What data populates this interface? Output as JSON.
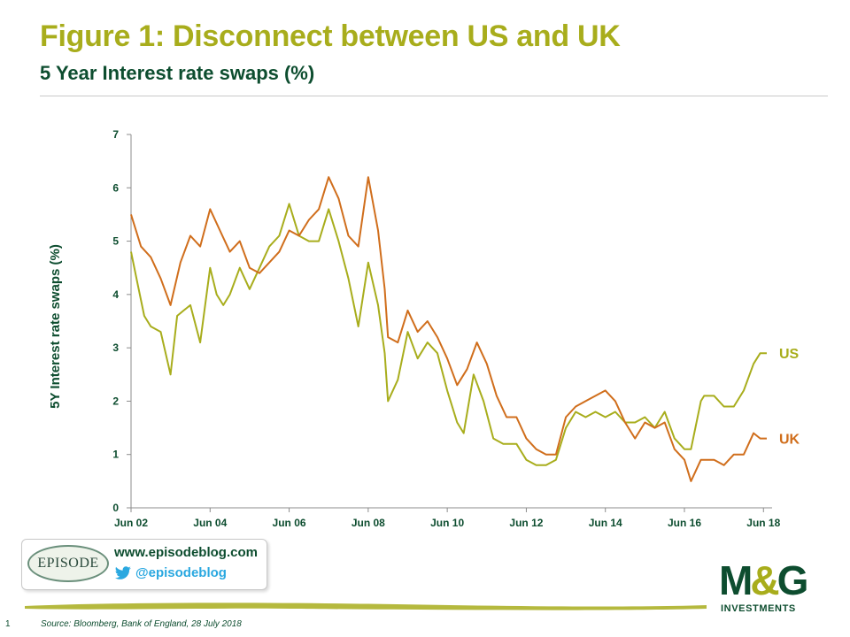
{
  "header": {
    "title": "Figure 1: Disconnect between US and UK",
    "subtitle": "5 Year Interest rate swaps (%)"
  },
  "colors": {
    "us": "#a8ad1c",
    "uk": "#d06e1c",
    "text_dark": "#0d4d2f",
    "twitter": "#2aa8e0"
  },
  "chart_data": {
    "type": "line",
    "ylabel": "5Y Interest rate swaps (%)",
    "xlabel": "",
    "ylim": [
      0,
      7
    ],
    "yticks": [
      0,
      1,
      2,
      3,
      4,
      5,
      6,
      7
    ],
    "xlim": [
      "2002-06",
      "2018-07"
    ],
    "xticks": [
      "Jun 02",
      "Jun 04",
      "Jun 06",
      "Jun 08",
      "Jun 10",
      "Jun 12",
      "Jun 14",
      "Jun 16",
      "Jun 18"
    ],
    "grid": false,
    "series": [
      {
        "name": "US",
        "color": "#a8ad1c",
        "points": [
          [
            "2002-06",
            4.8
          ],
          [
            "2002-08",
            4.2
          ],
          [
            "2002-10",
            3.6
          ],
          [
            "2002-12",
            3.4
          ],
          [
            "2003-03",
            3.3
          ],
          [
            "2003-06",
            2.5
          ],
          [
            "2003-08",
            3.6
          ],
          [
            "2003-10",
            3.7
          ],
          [
            "2003-12",
            3.8
          ],
          [
            "2004-03",
            3.1
          ],
          [
            "2004-06",
            4.5
          ],
          [
            "2004-08",
            4.0
          ],
          [
            "2004-10",
            3.8
          ],
          [
            "2004-12",
            4.0
          ],
          [
            "2005-03",
            4.5
          ],
          [
            "2005-06",
            4.1
          ],
          [
            "2005-09",
            4.5
          ],
          [
            "2005-12",
            4.9
          ],
          [
            "2006-03",
            5.1
          ],
          [
            "2006-06",
            5.7
          ],
          [
            "2006-09",
            5.1
          ],
          [
            "2006-12",
            5.0
          ],
          [
            "2007-03",
            5.0
          ],
          [
            "2007-06",
            5.6
          ],
          [
            "2007-09",
            5.0
          ],
          [
            "2007-12",
            4.3
          ],
          [
            "2008-03",
            3.4
          ],
          [
            "2008-06",
            4.6
          ],
          [
            "2008-09",
            3.8
          ],
          [
            "2008-11",
            2.9
          ],
          [
            "2008-12",
            2.0
          ],
          [
            "2009-03",
            2.4
          ],
          [
            "2009-06",
            3.3
          ],
          [
            "2009-09",
            2.8
          ],
          [
            "2009-12",
            3.1
          ],
          [
            "2010-03",
            2.9
          ],
          [
            "2010-06",
            2.2
          ],
          [
            "2010-09",
            1.6
          ],
          [
            "2010-11",
            1.4
          ],
          [
            "2011-02",
            2.5
          ],
          [
            "2011-05",
            2.0
          ],
          [
            "2011-08",
            1.3
          ],
          [
            "2011-11",
            1.2
          ],
          [
            "2012-03",
            1.2
          ],
          [
            "2012-06",
            0.9
          ],
          [
            "2012-09",
            0.8
          ],
          [
            "2012-12",
            0.8
          ],
          [
            "2013-03",
            0.9
          ],
          [
            "2013-06",
            1.5
          ],
          [
            "2013-09",
            1.8
          ],
          [
            "2013-12",
            1.7
          ],
          [
            "2014-03",
            1.8
          ],
          [
            "2014-06",
            1.7
          ],
          [
            "2014-09",
            1.8
          ],
          [
            "2014-12",
            1.6
          ],
          [
            "2015-03",
            1.6
          ],
          [
            "2015-06",
            1.7
          ],
          [
            "2015-09",
            1.5
          ],
          [
            "2015-12",
            1.8
          ],
          [
            "2016-03",
            1.3
          ],
          [
            "2016-06",
            1.1
          ],
          [
            "2016-08",
            1.1
          ],
          [
            "2016-11",
            2.0
          ],
          [
            "2016-12",
            2.1
          ],
          [
            "2017-03",
            2.1
          ],
          [
            "2017-06",
            1.9
          ],
          [
            "2017-09",
            1.9
          ],
          [
            "2017-12",
            2.2
          ],
          [
            "2018-03",
            2.7
          ],
          [
            "2018-05",
            2.9
          ],
          [
            "2018-07",
            2.9
          ]
        ]
      },
      {
        "name": "UK",
        "color": "#d06e1c",
        "points": [
          [
            "2002-06",
            5.5
          ],
          [
            "2002-09",
            4.9
          ],
          [
            "2002-12",
            4.7
          ],
          [
            "2003-03",
            4.3
          ],
          [
            "2003-06",
            3.8
          ],
          [
            "2003-09",
            4.6
          ],
          [
            "2003-12",
            5.1
          ],
          [
            "2004-03",
            4.9
          ],
          [
            "2004-06",
            5.6
          ],
          [
            "2004-09",
            5.2
          ],
          [
            "2004-12",
            4.8
          ],
          [
            "2005-03",
            5.0
          ],
          [
            "2005-06",
            4.5
          ],
          [
            "2005-09",
            4.4
          ],
          [
            "2005-12",
            4.6
          ],
          [
            "2006-03",
            4.8
          ],
          [
            "2006-06",
            5.2
          ],
          [
            "2006-09",
            5.1
          ],
          [
            "2006-12",
            5.4
          ],
          [
            "2007-03",
            5.6
          ],
          [
            "2007-06",
            6.2
          ],
          [
            "2007-09",
            5.8
          ],
          [
            "2007-12",
            5.1
          ],
          [
            "2008-03",
            4.9
          ],
          [
            "2008-06",
            6.2
          ],
          [
            "2008-09",
            5.2
          ],
          [
            "2008-11",
            4.1
          ],
          [
            "2008-12",
            3.2
          ],
          [
            "2009-03",
            3.1
          ],
          [
            "2009-06",
            3.7
          ],
          [
            "2009-09",
            3.3
          ],
          [
            "2009-12",
            3.5
          ],
          [
            "2010-03",
            3.2
          ],
          [
            "2010-06",
            2.8
          ],
          [
            "2010-09",
            2.3
          ],
          [
            "2010-12",
            2.6
          ],
          [
            "2011-03",
            3.1
          ],
          [
            "2011-06",
            2.7
          ],
          [
            "2011-09",
            2.1
          ],
          [
            "2011-12",
            1.7
          ],
          [
            "2012-03",
            1.7
          ],
          [
            "2012-06",
            1.3
          ],
          [
            "2012-09",
            1.1
          ],
          [
            "2012-12",
            1.0
          ],
          [
            "2013-03",
            1.0
          ],
          [
            "2013-06",
            1.7
          ],
          [
            "2013-09",
            1.9
          ],
          [
            "2013-12",
            2.0
          ],
          [
            "2014-03",
            2.1
          ],
          [
            "2014-06",
            2.2
          ],
          [
            "2014-09",
            2.0
          ],
          [
            "2014-12",
            1.6
          ],
          [
            "2015-03",
            1.3
          ],
          [
            "2015-06",
            1.6
          ],
          [
            "2015-09",
            1.5
          ],
          [
            "2015-12",
            1.6
          ],
          [
            "2016-03",
            1.1
          ],
          [
            "2016-06",
            0.9
          ],
          [
            "2016-08",
            0.5
          ],
          [
            "2016-11",
            0.9
          ],
          [
            "2017-03",
            0.9
          ],
          [
            "2017-06",
            0.8
          ],
          [
            "2017-09",
            1.0
          ],
          [
            "2017-12",
            1.0
          ],
          [
            "2018-03",
            1.4
          ],
          [
            "2018-05",
            1.3
          ],
          [
            "2018-07",
            1.3
          ]
        ]
      }
    ]
  },
  "promo": {
    "logo_text": "EPISODE",
    "url": "www.episodeblog.com",
    "handle": "@episodeblog"
  },
  "brand": {
    "logo_main_left": "M",
    "logo_amp": "&",
    "logo_main_right": "G",
    "logo_sub": "INVESTMENTS"
  },
  "footer": {
    "page_number": "1",
    "source": "Source: Bloomberg, Bank of England, 28 July 2018"
  },
  "icons": {
    "twitter": "twitter-bird-icon"
  }
}
